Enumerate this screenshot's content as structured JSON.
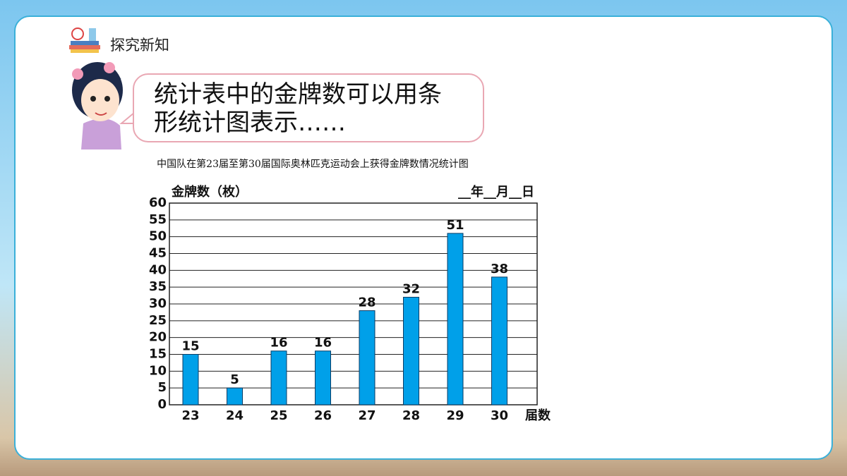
{
  "header": {
    "title": "探究新知"
  },
  "speech": [
    "统计表中的金牌数可以用条",
    "形统计图表示……"
  ],
  "chart_data": {
    "type": "bar",
    "title": "中国队在第23届至第30届国际奥林匹克运动会上获得金牌数情况统计图",
    "y_label": "金牌数（枚）",
    "x_label": "届数",
    "date_note": "__年__月__日",
    "categories": [
      "23",
      "24",
      "25",
      "26",
      "27",
      "28",
      "29",
      "30"
    ],
    "values": [
      15,
      5,
      16,
      16,
      28,
      32,
      51,
      38
    ],
    "color": "#00a0e9",
    "ylim": [
      0,
      60
    ],
    "yticks": [
      0,
      5,
      10,
      15,
      20,
      25,
      30,
      35,
      40,
      45,
      50,
      55,
      60
    ],
    "grid": true
  }
}
